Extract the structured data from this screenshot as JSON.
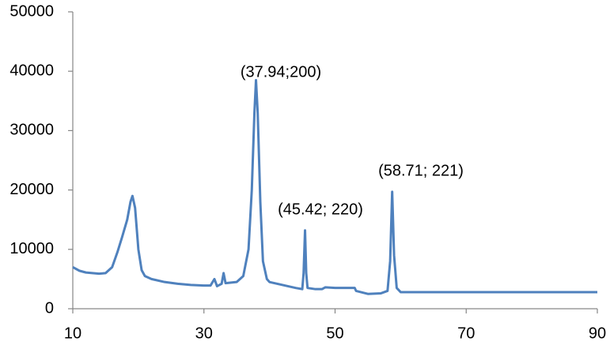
{
  "chart_data": {
    "type": "line",
    "x": [
      10,
      11,
      12,
      13,
      14,
      15,
      16,
      16.8,
      17.5,
      18.3,
      18.8,
      19.1,
      19.5,
      20,
      20.5,
      21,
      22,
      24,
      26,
      28,
      30,
      31,
      31.6,
      32,
      32.7,
      33,
      33.3,
      35,
      36,
      36.8,
      37.3,
      37.7,
      37.94,
      38.2,
      38.6,
      39,
      39.6,
      40,
      42,
      44,
      45,
      45.2,
      45.42,
      45.6,
      45.8,
      47,
      48,
      48.5,
      50,
      53,
      53.2,
      55,
      57,
      58,
      58.4,
      58.71,
      59,
      59.4,
      60,
      70,
      80,
      90
    ],
    "values": [
      7000,
      6400,
      6100,
      6000,
      5900,
      6000,
      7000,
      9500,
      12000,
      15000,
      18000,
      19000,
      17000,
      10000,
      6500,
      5500,
      5000,
      4500,
      4200,
      4000,
      3900,
      3900,
      5000,
      3800,
      4200,
      6000,
      4300,
      4500,
      5500,
      10000,
      20000,
      33000,
      38500,
      33000,
      18000,
      8000,
      5000,
      4500,
      4000,
      3500,
      3300,
      6000,
      13200,
      6000,
      3500,
      3300,
      3300,
      3600,
      3500,
      3500,
      3000,
      2500,
      2600,
      3000,
      8000,
      19700,
      9000,
      3500,
      2800,
      2800,
      2800,
      2800
    ],
    "color": "#4f81bd",
    "xlim": [
      10,
      90
    ],
    "xticks": [
      10,
      30,
      50,
      70,
      90
    ],
    "ylim": [
      0,
      50000
    ],
    "yticks": [
      0,
      10000,
      20000,
      30000,
      40000,
      50000
    ],
    "grid": false,
    "annotations": [
      "(37.94;200)",
      "(45.42; 220)",
      "(58.71; 221)"
    ]
  }
}
